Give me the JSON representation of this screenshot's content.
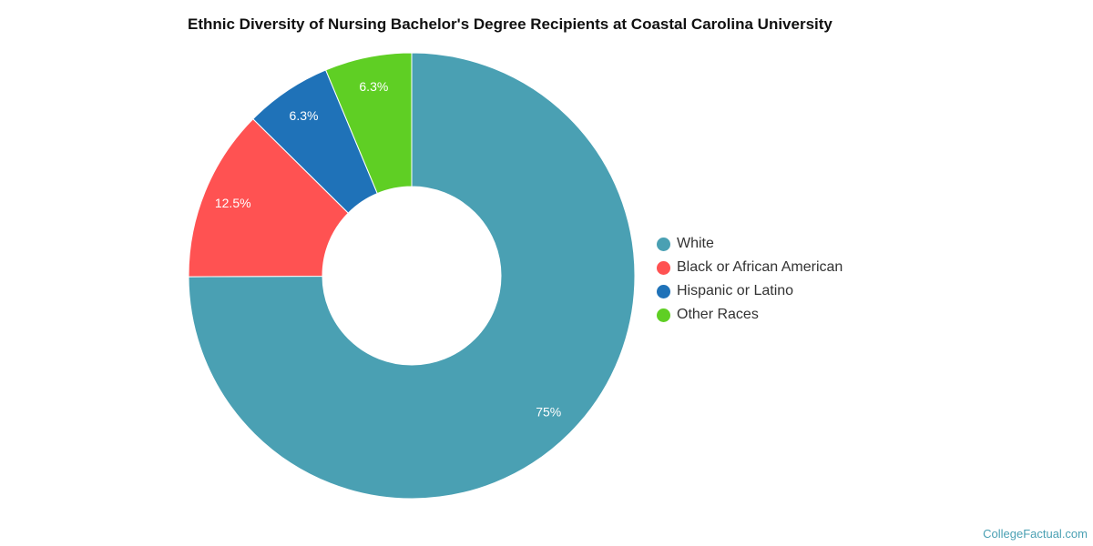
{
  "chart_data": {
    "type": "pie",
    "donut": true,
    "title": "Ethnic Diversity of Nursing Bachelor's Degree Recipients at Coastal Carolina University",
    "categories": [
      "White",
      "Black or African American",
      "Hispanic or Latino",
      "Other Races"
    ],
    "values": [
      75,
      12.5,
      6.3,
      6.3
    ],
    "labels": [
      "75%",
      "12.5%",
      "6.3%",
      "6.3%"
    ],
    "colors": [
      "#4aa0b3",
      "#ff5252",
      "#1f72b8",
      "#5fcf24"
    ],
    "legend_position": "right"
  },
  "credit": "CollegeFactual.com"
}
